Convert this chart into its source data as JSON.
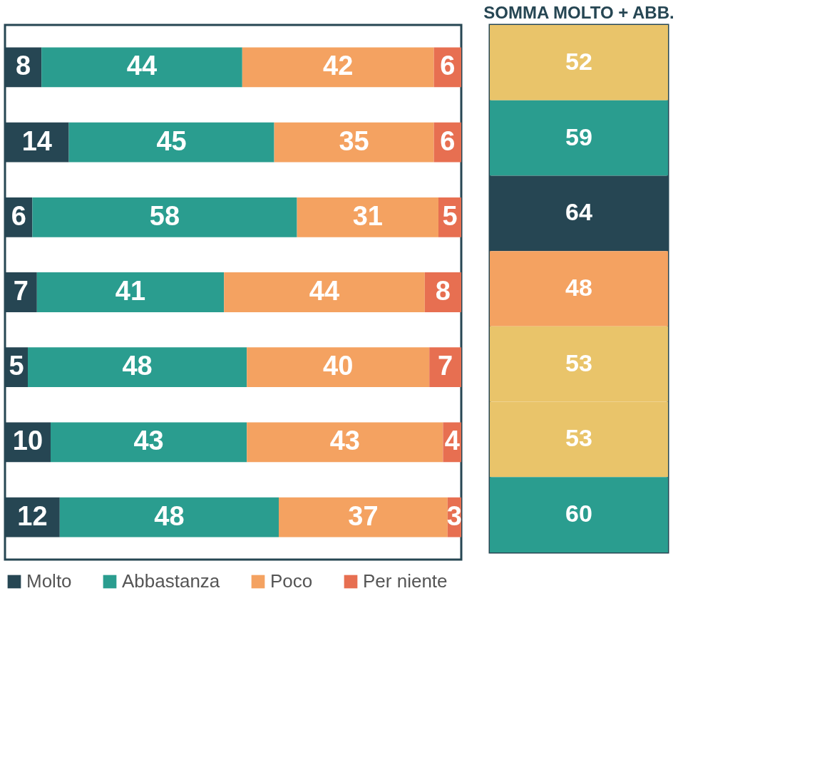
{
  "chart_data": [
    {
      "type": "bar",
      "orientation": "horizontal",
      "stacked": true,
      "data_labels": true,
      "legend": "bottom",
      "grid": false,
      "categories": [
        null,
        null,
        null,
        null,
        null,
        null,
        null
      ],
      "series": [
        {
          "name": "Molto",
          "color": "#264653",
          "values": [
            8,
            14,
            6,
            7,
            5,
            10,
            12
          ]
        },
        {
          "name": "Abbastanza",
          "color": "#2a9d8f",
          "values": [
            44,
            45,
            58,
            41,
            48,
            43,
            48
          ]
        },
        {
          "name": "Poco",
          "color": "#f4a261",
          "values": [
            42,
            35,
            31,
            44,
            40,
            43,
            37
          ]
        },
        {
          "name": "Per niente",
          "color": "#e76f51",
          "values": [
            6,
            6,
            5,
            8,
            7,
            4,
            3
          ]
        }
      ]
    },
    {
      "type": "other",
      "title": "SOMMA MOLTO + ABB.",
      "annotations": [
        "52",
        "59",
        "64",
        "48",
        "53",
        "53",
        "60"
      ],
      "colors": [
        "#e9c46a",
        "#2a9d8f",
        "#264653",
        "#f4a261",
        "#e9c46a",
        "#e9c46a",
        "#2a9d8f"
      ]
    }
  ]
}
